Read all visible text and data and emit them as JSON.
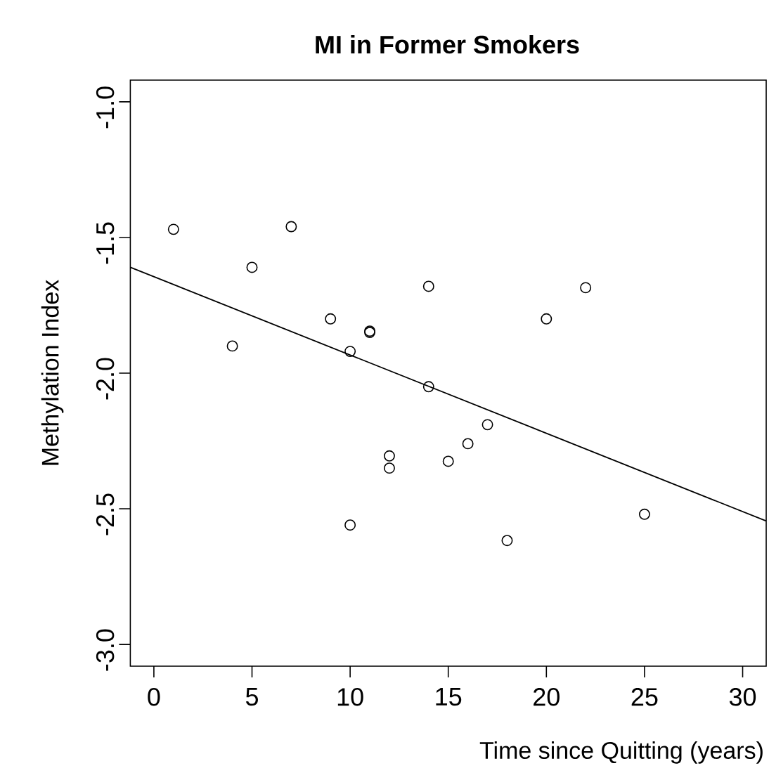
{
  "chart_data": {
    "type": "scatter",
    "title": "MI in Former Smokers",
    "xlabel": "Time since Quitting (years)",
    "ylabel": "Methylation Index",
    "series": [
      {
        "type": "scatter",
        "color": "#000000",
        "marker": "circle",
        "x": [
          1,
          5,
          7,
          4,
          9,
          11,
          11,
          10,
          14,
          14,
          12,
          12,
          10,
          15,
          22,
          20,
          17,
          16,
          25,
          18
        ],
        "values": [
          -1.47,
          -1.61,
          -1.46,
          -1.9,
          -1.8,
          -1.845,
          -1.85,
          -1.92,
          -1.68,
          -2.05,
          -2.305,
          -2.35,
          -2.56,
          -2.325,
          -1.685,
          -1.8,
          -2.19,
          -2.26,
          -2.52,
          -2.617
        ]
      },
      {
        "type": "line",
        "color": "#000000",
        "marker": "none",
        "line_style": "solid",
        "x": [
          -1.2,
          31.2
        ],
        "values": [
          -1.61,
          -2.545
        ]
      }
    ],
    "xlim": [
      -1.2,
      31.2
    ],
    "ylim": [
      -3.08,
      -0.92
    ],
    "xticks": [
      0,
      5,
      10,
      15,
      20,
      25,
      30
    ],
    "yticks": [
      {
        "value": -3,
        "label": "-3.0"
      },
      {
        "value": -2.5,
        "label": "-2.5"
      },
      {
        "value": -2,
        "label": "-2.0"
      },
      {
        "value": -1.5,
        "label": "-1.5"
      },
      {
        "value": -1,
        "label": "-1.0"
      }
    ]
  }
}
